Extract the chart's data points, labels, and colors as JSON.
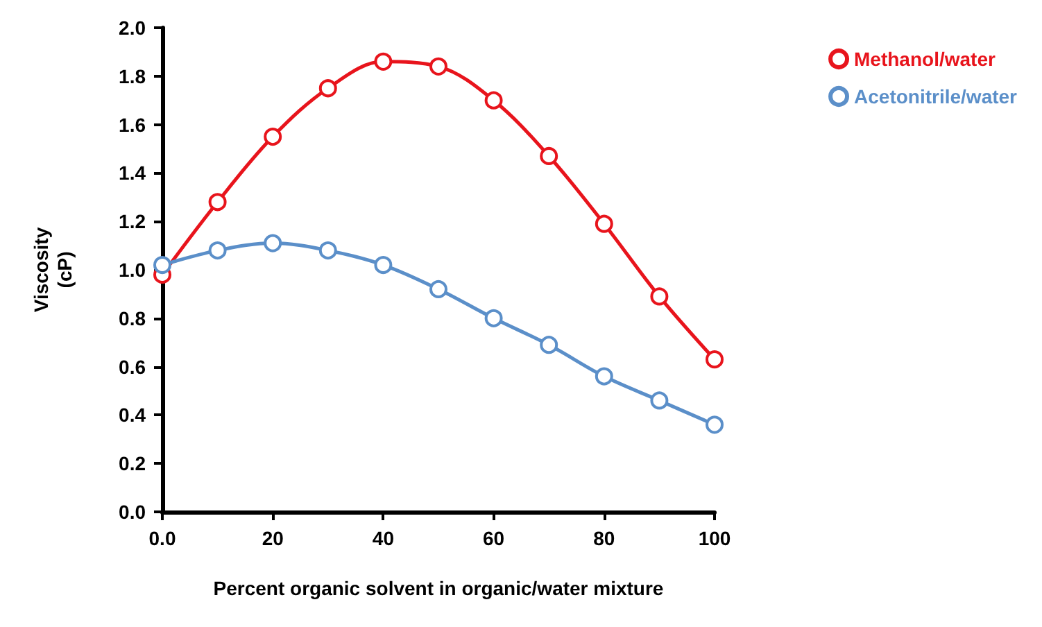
{
  "chart_data": {
    "type": "line",
    "xlabel": "Percent organic solvent in organic/water mixture",
    "ylabel": "Viscosity\n(cP)",
    "x": [
      0,
      10,
      20,
      30,
      40,
      50,
      60,
      70,
      80,
      90,
      100
    ],
    "series": [
      {
        "name": "Methanol/water",
        "color": "#e8141c",
        "values": [
          0.98,
          1.28,
          1.55,
          1.75,
          1.86,
          1.84,
          1.7,
          1.47,
          1.19,
          0.89,
          0.63
        ]
      },
      {
        "name": "Acetonitrile/water",
        "color": "#5b8fc9",
        "values": [
          1.02,
          1.08,
          1.11,
          1.08,
          1.02,
          0.92,
          0.8,
          0.69,
          0.56,
          0.46,
          0.36
        ]
      }
    ],
    "xlim": [
      0,
      100
    ],
    "xticks": [
      {
        "value": 0,
        "label": "0.0"
      },
      20,
      40,
      60,
      80,
      100
    ],
    "ylim": [
      0,
      2
    ],
    "yticks": [
      {
        "value": 0,
        "label": "0.0"
      },
      {
        "value": 0.2,
        "label": "0.2"
      },
      {
        "value": 0.4,
        "label": "0.4"
      },
      {
        "value": 0.6,
        "label": "0.6"
      },
      {
        "value": 0.8,
        "label": "0.8"
      },
      {
        "value": 1,
        "label": "1.0"
      },
      {
        "value": 1.2,
        "label": "1.2"
      },
      {
        "value": 1.4,
        "label": "1.4"
      },
      {
        "value": 1.6,
        "label": "1.6"
      },
      {
        "value": 1.8,
        "label": "1.8"
      },
      {
        "value": 2,
        "label": "2.0"
      }
    ],
    "grid": false,
    "legend": "top right",
    "marker": "circle",
    "line_style": "solid"
  }
}
